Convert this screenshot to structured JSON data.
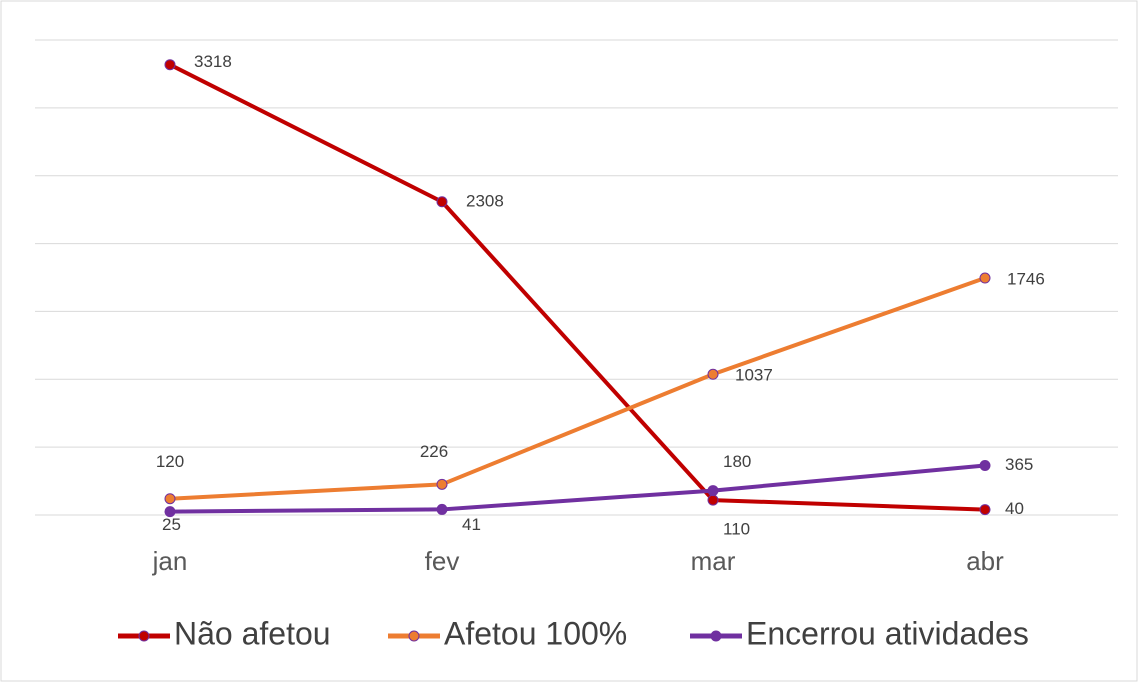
{
  "chart_data": {
    "type": "line",
    "categories": [
      "jan",
      "fev",
      "mar",
      "abr"
    ],
    "series": [
      {
        "name": "Não afetou",
        "color": "#c00000",
        "values": [
          3318,
          2308,
          110,
          40
        ]
      },
      {
        "name": "Afetou 100%",
        "color": "#ed7d31",
        "values": [
          120,
          226,
          1037,
          1746
        ]
      },
      {
        "name": "Encerrou atividades",
        "color": "#7030a0",
        "values": [
          25,
          41,
          180,
          365
        ]
      }
    ],
    "ylim": [
      0,
      3500
    ],
    "yticks": [
      0,
      500,
      1000,
      1500,
      2000,
      2500,
      3000,
      3500
    ],
    "grid": true
  }
}
